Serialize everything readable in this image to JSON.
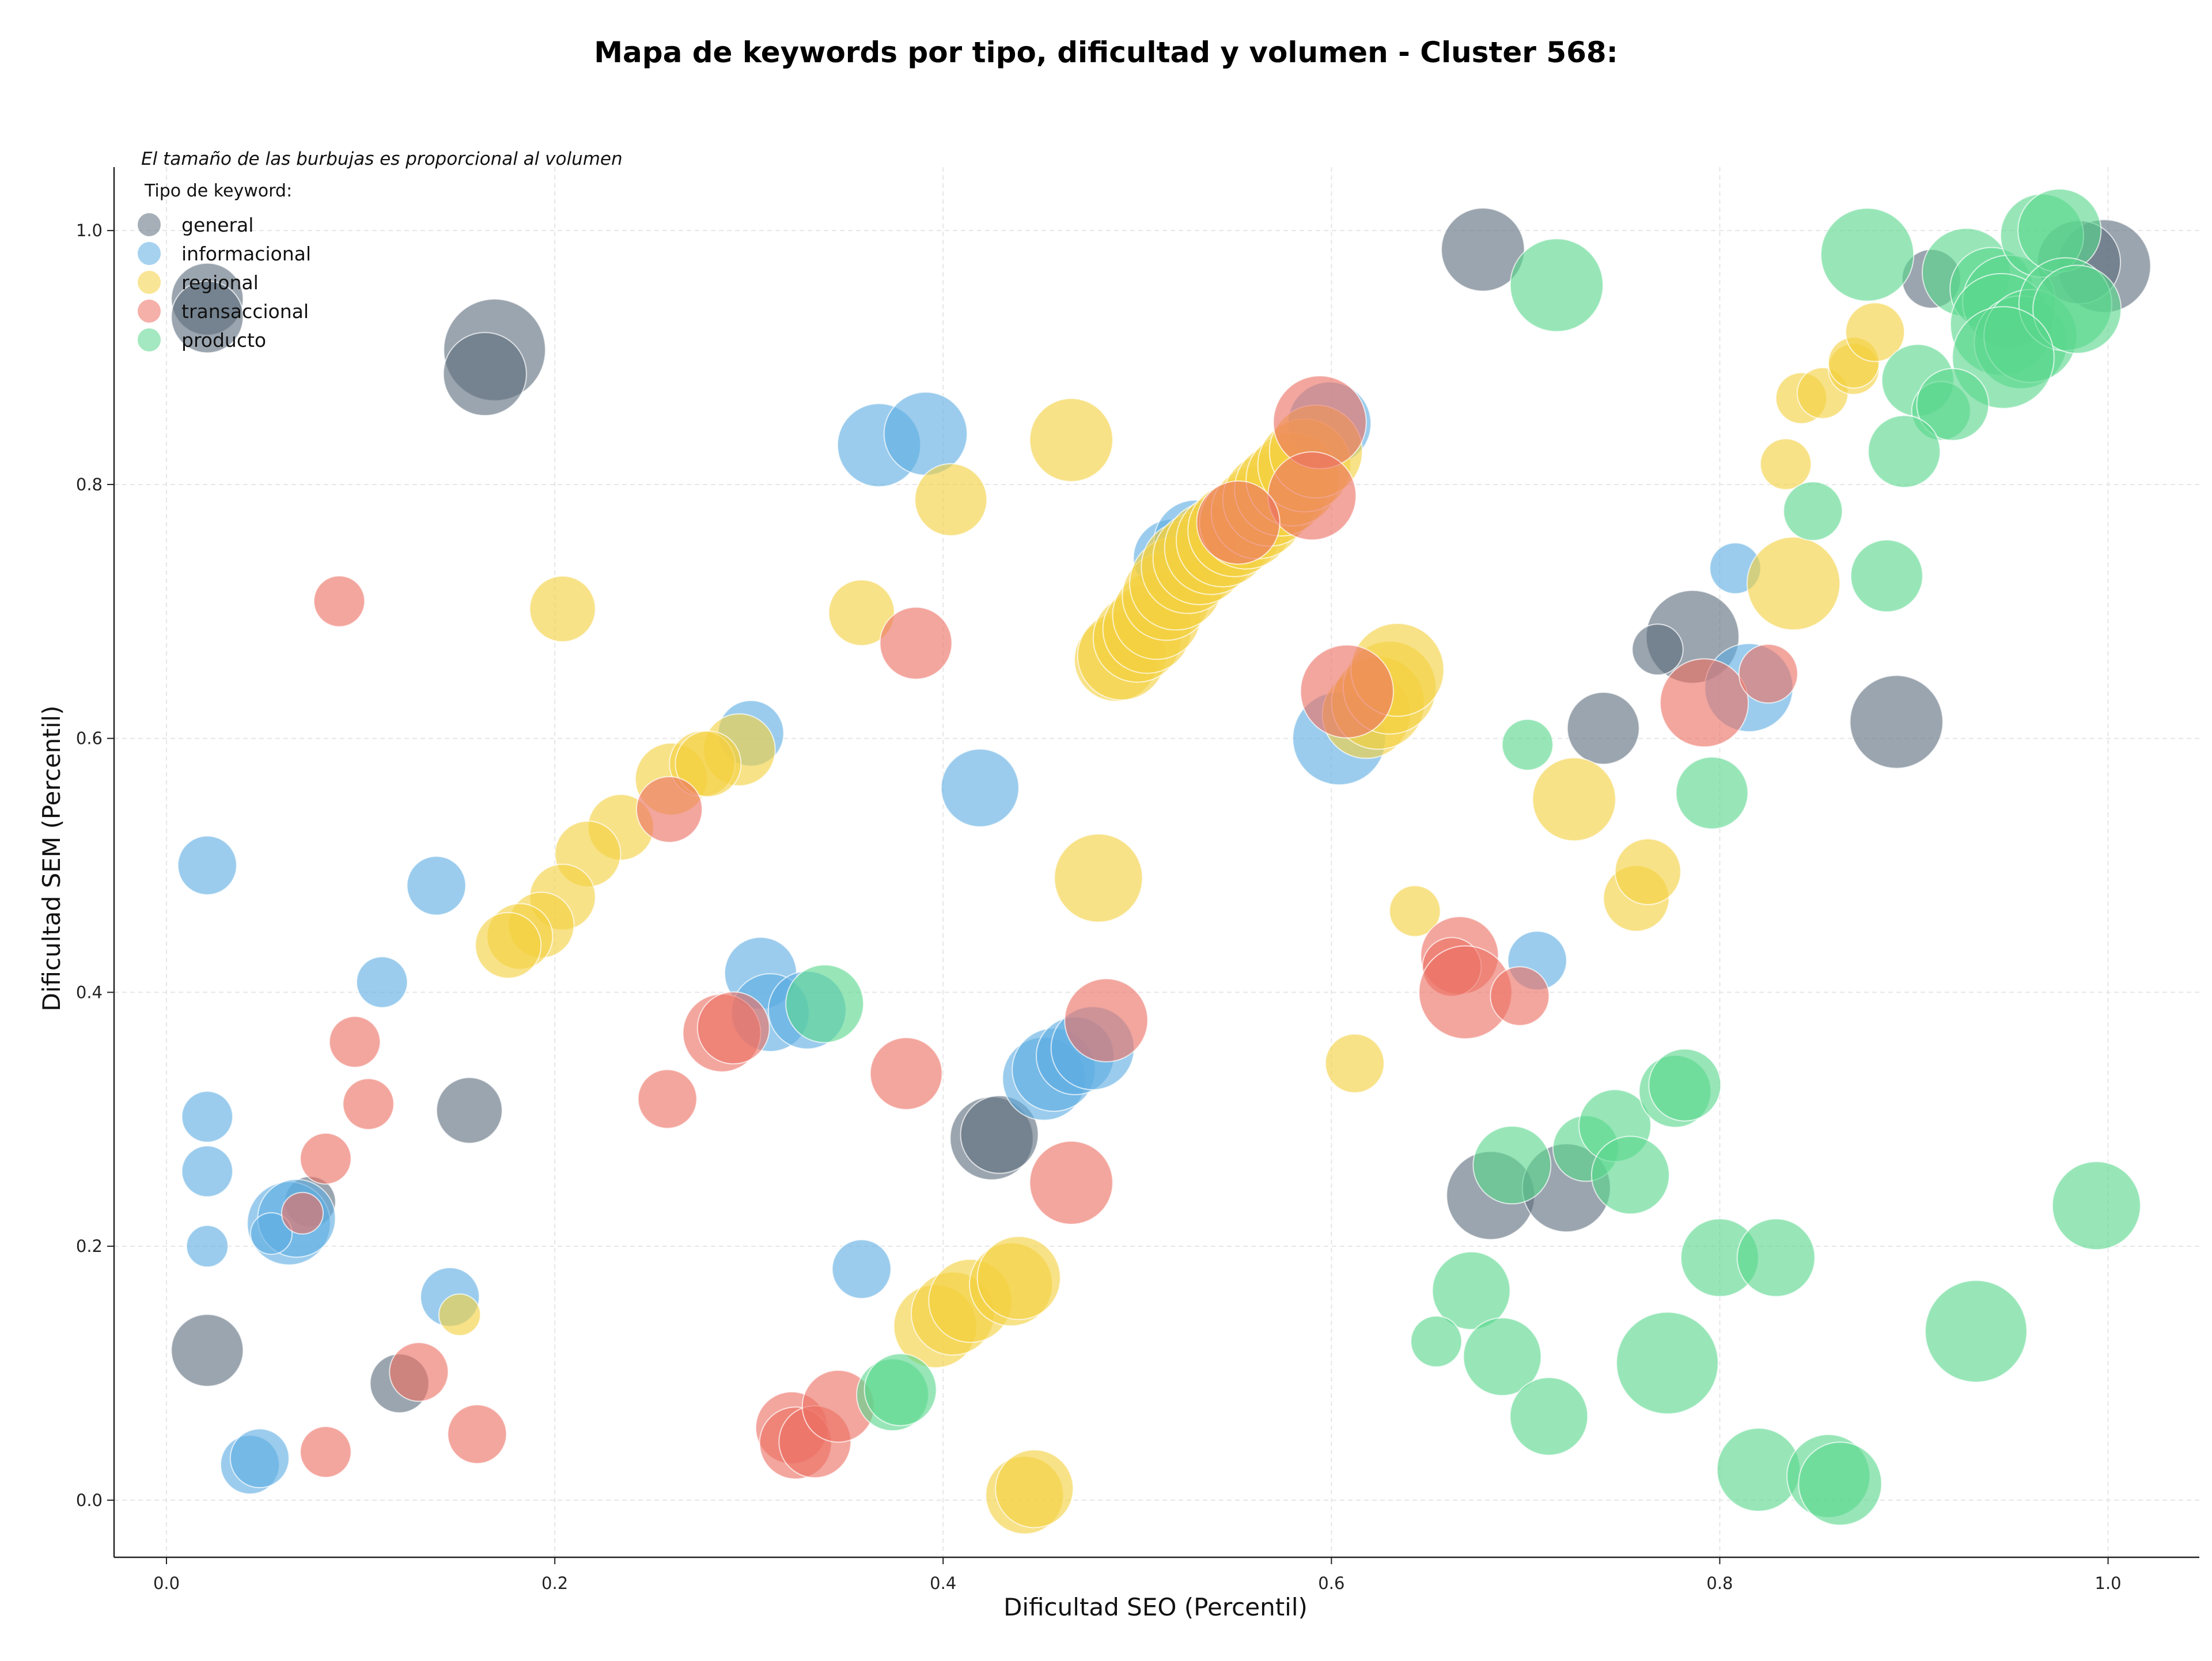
{
  "chart_data": {
    "type": "scatter",
    "title": "Mapa de keywords por tipo, dificultad y volumen - Cluster 568:",
    "xlabel": "Dificultad SEO (Percentil)",
    "ylabel": "Dificultad SEM (Percentil)",
    "note": "El tamaño de las burbujas es proporcional al volumen",
    "legend_title": "Tipo de keyword:",
    "legend_position": "top-left",
    "grid": true,
    "xlim": [
      -0.027,
      1.047
    ],
    "ylim": [
      -0.045,
      1.05
    ],
    "xticks": [
      "0.0",
      "0.2",
      "0.4",
      "0.6",
      "0.8",
      "1.0"
    ],
    "yticks": [
      "0.0",
      "0.2",
      "0.4",
      "0.6",
      "0.8",
      "1.0"
    ],
    "series": [
      {
        "name": "general",
        "color": "#5D6D7E",
        "points": [
          [
            0.021,
            0.946,
            3
          ],
          [
            0.021,
            0.932,
            3
          ],
          [
            0.169,
            0.906,
            6
          ],
          [
            0.164,
            0.887,
            4
          ],
          [
            0.678,
            0.985,
            4
          ],
          [
            0.909,
            0.962,
            2
          ],
          [
            0.998,
            0.972,
            5
          ],
          [
            0.985,
            0.975,
            4
          ],
          [
            0.786,
            0.68,
            5
          ],
          [
            0.768,
            0.67,
            1.5
          ],
          [
            0.74,
            0.608,
            3
          ],
          [
            0.891,
            0.613,
            5
          ],
          [
            0.156,
            0.307,
            2.5
          ],
          [
            0.074,
            0.235,
            1.5
          ],
          [
            0.021,
            0.118,
            3
          ],
          [
            0.425,
            0.285,
            4
          ],
          [
            0.429,
            0.288,
            3.5
          ],
          [
            0.682,
            0.24,
            4.5
          ],
          [
            0.721,
            0.246,
            4.5
          ],
          [
            0.12,
            0.092,
            2
          ]
        ]
      },
      {
        "name": "informacional",
        "color": "#5DADE2",
        "points": [
          [
            0.367,
            0.831,
            4
          ],
          [
            0.391,
            0.84,
            4
          ],
          [
            0.599,
            0.848,
            4
          ],
          [
            0.301,
            0.604,
            2.5
          ],
          [
            0.419,
            0.561,
            3.5
          ],
          [
            0.021,
            0.5,
            2
          ],
          [
            0.139,
            0.484,
            2
          ],
          [
            0.111,
            0.408,
            1.5
          ],
          [
            0.306,
            0.415,
            3
          ],
          [
            0.311,
            0.384,
            3.5
          ],
          [
            0.33,
            0.386,
            3.5
          ],
          [
            0.021,
            0.302,
            1.5
          ],
          [
            0.021,
            0.259,
            1.5
          ],
          [
            0.021,
            0.2,
            1
          ],
          [
            0.063,
            0.218,
            4
          ],
          [
            0.067,
            0.222,
            3.5
          ],
          [
            0.054,
            0.21,
            1
          ],
          [
            0.146,
            0.16,
            2
          ],
          [
            0.358,
            0.182,
            2
          ],
          [
            0.043,
            0.028,
            2
          ],
          [
            0.048,
            0.033,
            2
          ],
          [
            0.604,
            0.6,
            5
          ],
          [
            0.815,
            0.64,
            4.5
          ],
          [
            0.808,
            0.734,
            1.5
          ],
          [
            0.706,
            0.425,
            2
          ],
          [
            0.452,
            0.332,
            4
          ],
          [
            0.457,
            0.339,
            4
          ],
          [
            0.468,
            0.35,
            3.5
          ],
          [
            0.477,
            0.356,
            4
          ],
          [
            0.518,
            0.742,
            3.5
          ],
          [
            0.53,
            0.755,
            4
          ]
        ]
      },
      {
        "name": "regional",
        "color": "#F4D03F",
        "points": [
          [
            0.466,
            0.835,
            4
          ],
          [
            0.404,
            0.788,
            3
          ],
          [
            0.204,
            0.702,
            2.5
          ],
          [
            0.358,
            0.699,
            2.5
          ],
          [
            0.295,
            0.591,
            3
          ],
          [
            0.26,
            0.568,
            3
          ],
          [
            0.276,
            0.58,
            2.5
          ],
          [
            0.279,
            0.58,
            2.5
          ],
          [
            0.234,
            0.53,
            2.5
          ],
          [
            0.217,
            0.509,
            2.5
          ],
          [
            0.204,
            0.475,
            2.5
          ],
          [
            0.193,
            0.453,
            2.5
          ],
          [
            0.182,
            0.444,
            2.5
          ],
          [
            0.176,
            0.437,
            2.5
          ],
          [
            0.48,
            0.49,
            4.5
          ],
          [
            0.489,
            0.662,
            4
          ],
          [
            0.492,
            0.665,
            4.5
          ],
          [
            0.5,
            0.679,
            4.5
          ],
          [
            0.505,
            0.686,
            4.5
          ],
          [
            0.51,
            0.697,
            4.5
          ],
          [
            0.515,
            0.712,
            4.5
          ],
          [
            0.52,
            0.722,
            5
          ],
          [
            0.526,
            0.735,
            5
          ],
          [
            0.532,
            0.742,
            5
          ],
          [
            0.538,
            0.75,
            5
          ],
          [
            0.544,
            0.756,
            5
          ],
          [
            0.55,
            0.764,
            5
          ],
          [
            0.556,
            0.77,
            5
          ],
          [
            0.562,
            0.778,
            5
          ],
          [
            0.568,
            0.788,
            5
          ],
          [
            0.574,
            0.796,
            5
          ],
          [
            0.58,
            0.804,
            5
          ],
          [
            0.586,
            0.815,
            5
          ],
          [
            0.592,
            0.826,
            5
          ],
          [
            0.618,
            0.619,
            4.5
          ],
          [
            0.624,
            0.628,
            5
          ],
          [
            0.63,
            0.64,
            5
          ],
          [
            0.634,
            0.654,
            5
          ],
          [
            0.643,
            0.464,
            1.5
          ],
          [
            0.725,
            0.552,
            4
          ],
          [
            0.757,
            0.474,
            2.5
          ],
          [
            0.763,
            0.495,
            2.5
          ],
          [
            0.612,
            0.344,
            2
          ],
          [
            0.838,
            0.722,
            5
          ],
          [
            0.834,
            0.816,
            1.5
          ],
          [
            0.842,
            0.868,
            1.5
          ],
          [
            0.853,
            0.872,
            1.5
          ],
          [
            0.869,
            0.891,
            1.5
          ],
          [
            0.869,
            0.896,
            1.5
          ],
          [
            0.88,
            0.92,
            2
          ],
          [
            0.151,
            0.146,
            1
          ],
          [
            0.396,
            0.137,
            4
          ],
          [
            0.405,
            0.147,
            4
          ],
          [
            0.414,
            0.157,
            4
          ],
          [
            0.435,
            0.17,
            4
          ],
          [
            0.439,
            0.175,
            4
          ],
          [
            0.442,
            0.004,
            3.5
          ],
          [
            0.447,
            0.009,
            3.5
          ]
        ]
      },
      {
        "name": "transaccional",
        "color": "#EC7063",
        "points": [
          [
            0.089,
            0.708,
            1.5
          ],
          [
            0.386,
            0.675,
            3
          ],
          [
            0.259,
            0.544,
            2.5
          ],
          [
            0.097,
            0.361,
            1.5
          ],
          [
            0.104,
            0.312,
            1.5
          ],
          [
            0.082,
            0.269,
            1.5
          ],
          [
            0.07,
            0.226,
            1
          ],
          [
            0.258,
            0.316,
            2
          ],
          [
            0.381,
            0.336,
            3
          ],
          [
            0.484,
            0.378,
            4
          ],
          [
            0.286,
            0.368,
            3.5
          ],
          [
            0.292,
            0.372,
            3
          ],
          [
            0.466,
            0.25,
            4
          ],
          [
            0.13,
            0.101,
            2
          ],
          [
            0.16,
            0.052,
            2
          ],
          [
            0.082,
            0.038,
            1.5
          ],
          [
            0.322,
            0.057,
            3
          ],
          [
            0.324,
            0.045,
            3
          ],
          [
            0.334,
            0.046,
            3
          ],
          [
            0.346,
            0.074,
            3
          ],
          [
            0.594,
            0.849,
            5
          ],
          [
            0.59,
            0.791,
            4.5
          ],
          [
            0.608,
            0.637,
            5
          ],
          [
            0.666,
            0.429,
            3.5
          ],
          [
            0.662,
            0.42,
            2
          ],
          [
            0.669,
            0.4,
            5
          ],
          [
            0.697,
            0.397,
            2
          ],
          [
            0.792,
            0.628,
            4.5
          ],
          [
            0.825,
            0.651,
            2
          ],
          [
            0.552,
            0.77,
            4
          ]
        ]
      },
      {
        "name": "producto",
        "color": "#58D68D",
        "points": [
          [
            0.716,
            0.957,
            5
          ],
          [
            0.876,
            0.981,
            5
          ],
          [
            0.927,
            0.967,
            4.5
          ],
          [
            0.94,
            0.954,
            4
          ],
          [
            0.949,
            0.944,
            5
          ],
          [
            0.945,
            0.926,
            6
          ],
          [
            0.955,
            0.912,
            5
          ],
          [
            0.96,
            0.917,
            5
          ],
          [
            0.966,
            0.996,
            4
          ],
          [
            0.975,
            1.0,
            4
          ],
          [
            0.978,
            0.942,
            5
          ],
          [
            0.984,
            0.938,
            4.5
          ],
          [
            0.946,
            0.9,
            6
          ],
          [
            0.902,
            0.882,
            3
          ],
          [
            0.914,
            0.858,
            2
          ],
          [
            0.92,
            0.863,
            3
          ],
          [
            0.895,
            0.826,
            3
          ],
          [
            0.848,
            0.779,
            2
          ],
          [
            0.886,
            0.728,
            3
          ],
          [
            0.701,
            0.595,
            1.5
          ],
          [
            0.796,
            0.557,
            3
          ],
          [
            0.374,
            0.083,
            3
          ],
          [
            0.378,
            0.087,
            3
          ],
          [
            0.339,
            0.391,
            3.5
          ],
          [
            0.693,
            0.264,
            3.5
          ],
          [
            0.731,
            0.277,
            2.5
          ],
          [
            0.746,
            0.295,
            3
          ],
          [
            0.754,
            0.256,
            3.5
          ],
          [
            0.777,
            0.322,
            3
          ],
          [
            0.782,
            0.327,
            3
          ],
          [
            0.672,
            0.165,
            3.5
          ],
          [
            0.688,
            0.113,
            3.5
          ],
          [
            0.712,
            0.066,
            3.5
          ],
          [
            0.654,
            0.125,
            1.5
          ],
          [
            0.773,
            0.108,
            6
          ],
          [
            0.8,
            0.191,
            3.5
          ],
          [
            0.829,
            0.191,
            3.5
          ],
          [
            0.82,
            0.024,
            4
          ],
          [
            0.856,
            0.019,
            4
          ],
          [
            0.862,
            0.013,
            4
          ],
          [
            0.932,
            0.133,
            6
          ],
          [
            0.994,
            0.232,
            4.5
          ]
        ]
      }
    ]
  }
}
